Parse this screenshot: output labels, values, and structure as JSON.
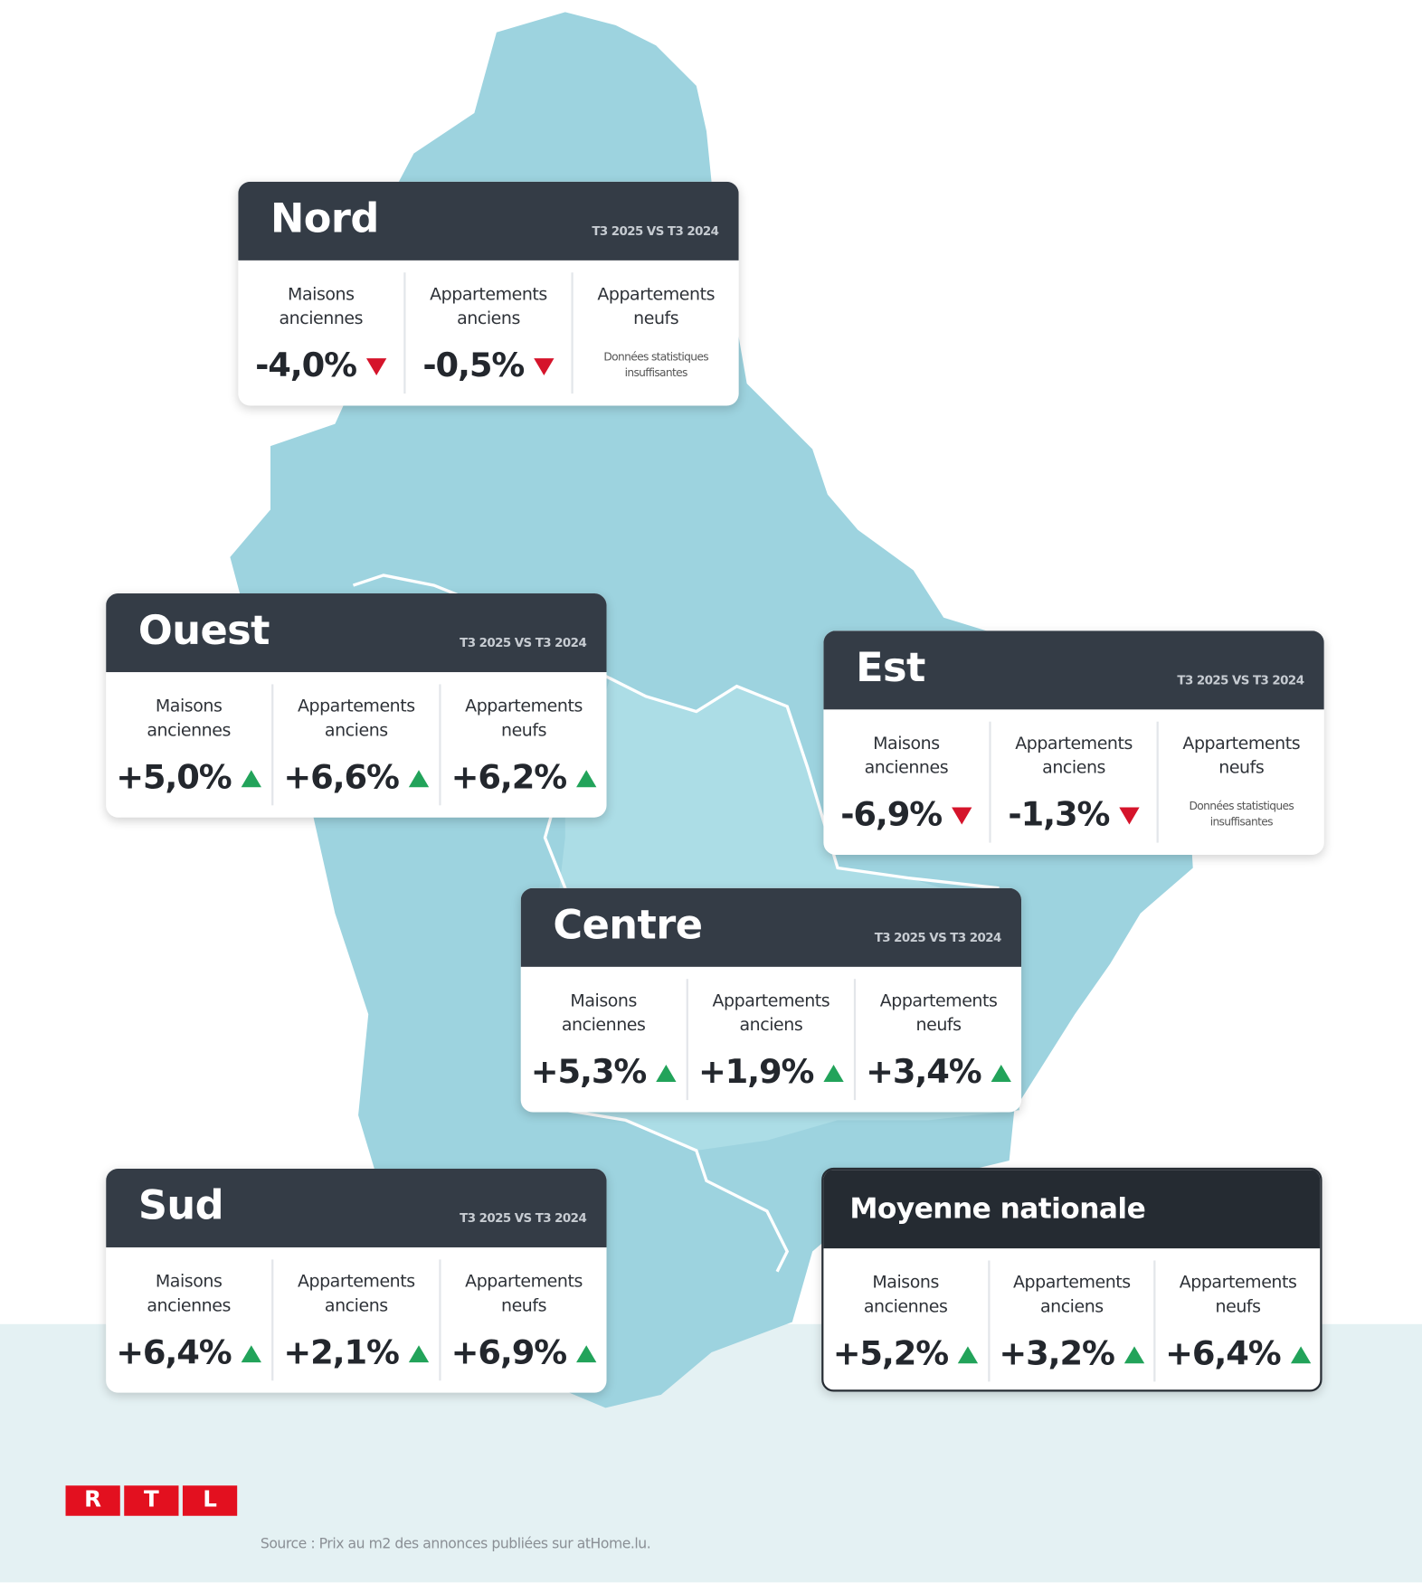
{
  "regions": [
    {
      "name": "Nord",
      "period": "T3 2025 VS T3 2024",
      "cells": [
        {
          "label": "Maisons anciennes",
          "value": "-4,0%",
          "trend": "down"
        },
        {
          "label": "Appartements anciens",
          "value": "-0,5%",
          "trend": "down"
        },
        {
          "label": "Appartements neufs",
          "note": "Données statistiques insuffisantes"
        }
      ]
    },
    {
      "name": "Ouest",
      "period": "T3 2025 VS T3 2024",
      "cells": [
        {
          "label": "Maisons anciennes",
          "value": "+5,0%",
          "trend": "up"
        },
        {
          "label": "Appartements anciens",
          "value": "+6,6%",
          "trend": "up"
        },
        {
          "label": "Appartements neufs",
          "value": "+6,2%",
          "trend": "up"
        }
      ]
    },
    {
      "name": "Est",
      "period": "T3 2025 VS T3 2024",
      "cells": [
        {
          "label": "Maisons anciennes",
          "value": "-6,9%",
          "trend": "down"
        },
        {
          "label": "Appartements anciens",
          "value": "-1,3%",
          "trend": "down"
        },
        {
          "label": "Appartements neufs",
          "note": "Données statistiques insuffisantes"
        }
      ]
    },
    {
      "name": "Centre",
      "period": "T3 2025 VS T3 2024",
      "cells": [
        {
          "label": "Maisons anciennes",
          "value": "+5,3%",
          "trend": "up"
        },
        {
          "label": "Appartements anciens",
          "value": "+1,9%",
          "trend": "up"
        },
        {
          "label": "Appartements neufs",
          "value": "+3,4%",
          "trend": "up"
        }
      ]
    },
    {
      "name": "Sud",
      "period": "T3 2025 VS T3 2024",
      "cells": [
        {
          "label": "Maisons anciennes",
          "value": "+6,4%",
          "trend": "up"
        },
        {
          "label": "Appartements anciens",
          "value": "+2,1%",
          "trend": "up"
        },
        {
          "label": "Appartements neufs",
          "value": "+6,9%",
          "trend": "up"
        }
      ]
    },
    {
      "name": "Moyenne nationale",
      "cells": [
        {
          "label": "Maisons anciennes",
          "value": "+5,2%",
          "trend": "up"
        },
        {
          "label": "Appartements anciens",
          "value": "+3,2%",
          "trend": "up"
        },
        {
          "label": "Appartements neufs",
          "value": "+6,4%",
          "trend": "up"
        }
      ]
    }
  ],
  "logo": [
    "R",
    "T",
    "L"
  ],
  "source": "Source : Prix au m2 des annonces publiées sur atHome.lu."
}
